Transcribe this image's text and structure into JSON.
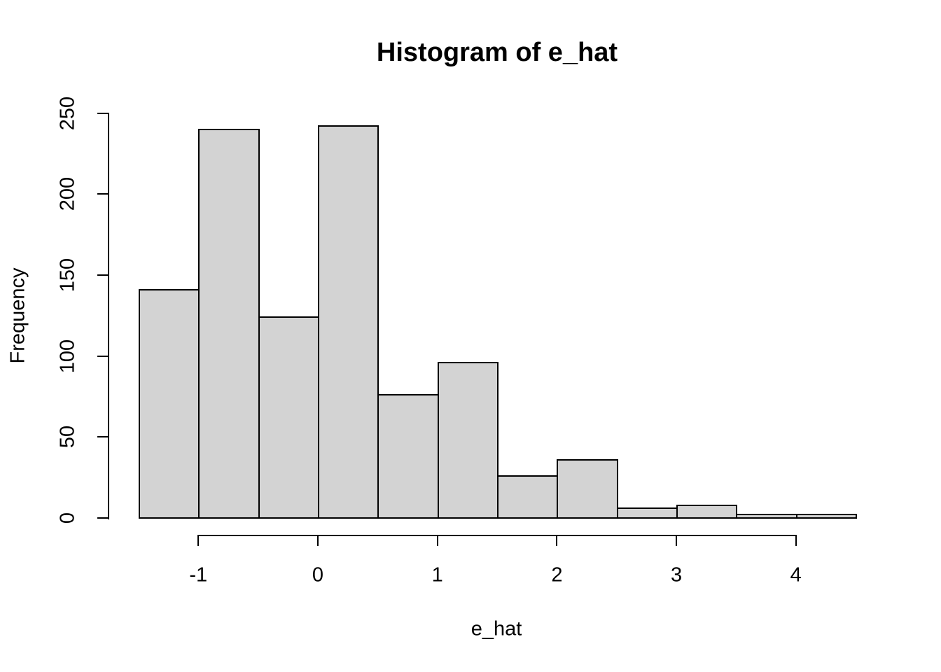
{
  "chart_data": {
    "type": "bar",
    "subtype": "histogram",
    "title": "Histogram of e_hat",
    "xlabel": "e_hat",
    "ylabel": "Frequency",
    "bin_edges": [
      -1.5,
      -1.0,
      -0.5,
      0.0,
      0.5,
      1.0,
      1.5,
      2.0,
      2.5,
      3.0,
      3.5,
      4.0,
      4.5
    ],
    "counts": [
      141,
      240,
      124,
      242,
      76,
      96,
      26,
      36,
      6,
      8,
      2,
      2
    ],
    "xlim": [
      -1.5,
      4.5
    ],
    "ylim": [
      0,
      250
    ],
    "x_ticks": [
      {
        "value": -1,
        "label": "-1"
      },
      {
        "value": 0,
        "label": "0"
      },
      {
        "value": 1,
        "label": "1"
      },
      {
        "value": 2,
        "label": "2"
      },
      {
        "value": 3,
        "label": "3"
      },
      {
        "value": 4,
        "label": "4"
      }
    ],
    "y_ticks": [
      {
        "value": 0,
        "label": "0"
      },
      {
        "value": 50,
        "label": "50"
      },
      {
        "value": 100,
        "label": "100"
      },
      {
        "value": 150,
        "label": "150"
      },
      {
        "value": 200,
        "label": "200"
      },
      {
        "value": 250,
        "label": "250"
      }
    ],
    "grid": false,
    "legend_position": "none",
    "colors": {
      "bar_fill": "#D3D3D3",
      "bar_border": "#000000",
      "axis": "#000000",
      "text": "#000000",
      "background": "#FFFFFF"
    }
  }
}
